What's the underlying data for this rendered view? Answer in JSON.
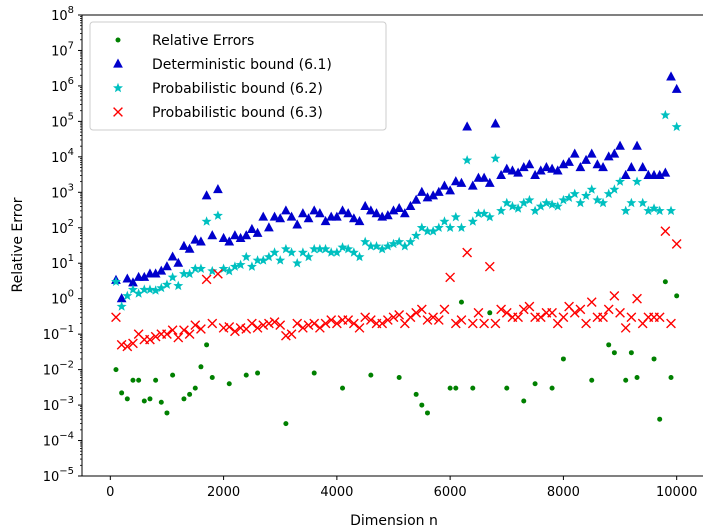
{
  "chart_data": {
    "type": "scatter",
    "title": "",
    "xlabel": "Dimension n",
    "ylabel": "Relative Error",
    "xlim": [
      -500,
      10500
    ],
    "ylim": [
      1e-05,
      100000000.0
    ],
    "yscale": "log",
    "xticks": [
      0,
      2000,
      4000,
      6000,
      8000,
      10000
    ],
    "xtick_labels": [
      "0",
      "2000",
      "4000",
      "6000",
      "8000",
      "10000"
    ],
    "yticks": [
      1e-05,
      0.0001,
      0.001,
      0.01,
      0.1,
      1.0,
      10.0,
      100.0,
      1000.0,
      10000.0,
      100000.0,
      1000000.0,
      10000000.0,
      100000000.0
    ],
    "ytick_labels": [
      {
        "base": "10",
        "exp": "−5"
      },
      {
        "base": "10",
        "exp": "−4"
      },
      {
        "base": "10",
        "exp": "−3"
      },
      {
        "base": "10",
        "exp": "−2"
      },
      {
        "base": "10",
        "exp": "−1"
      },
      {
        "base": "10",
        "exp": "0"
      },
      {
        "base": "10",
        "exp": "1"
      },
      {
        "base": "10",
        "exp": "2"
      },
      {
        "base": "10",
        "exp": "3"
      },
      {
        "base": "10",
        "exp": "4"
      },
      {
        "base": "10",
        "exp": "5"
      },
      {
        "base": "10",
        "exp": "6"
      },
      {
        "base": "10",
        "exp": "7"
      },
      {
        "base": "10",
        "exp": "8"
      }
    ],
    "legend_position": "top-left",
    "grid": false,
    "series": [
      {
        "name": "Relative Errors",
        "marker": "dot",
        "color": "#008000",
        "x": [
          100,
          200,
          300,
          400,
          500,
          600,
          700,
          800,
          900,
          1000,
          1100,
          1300,
          1400,
          1500,
          1600,
          1700,
          1800,
          2100,
          2400,
          2600,
          3100,
          3600,
          4100,
          4600,
          5100,
          5400,
          5500,
          5600,
          6000,
          6100,
          6200,
          6400,
          6700,
          7000,
          7300,
          7500,
          7800,
          8000,
          8500,
          8800,
          8900,
          9100,
          9200,
          9300,
          9600,
          9700,
          9800,
          9900,
          10000
        ],
        "y": [
          0.01,
          0.0022,
          0.0015,
          0.005,
          0.005,
          0.0013,
          0.0015,
          0.005,
          0.0012,
          0.0006,
          0.007,
          0.0015,
          0.002,
          0.003,
          0.012,
          0.05,
          0.006,
          0.004,
          0.007,
          0.008,
          0.0003,
          0.008,
          0.003,
          0.007,
          0.006,
          0.002,
          0.001,
          0.0006,
          0.003,
          0.003,
          0.8,
          0.003,
          0.4,
          0.003,
          0.0013,
          0.004,
          0.003,
          0.02,
          0.005,
          0.05,
          0.03,
          0.005,
          0.03,
          0.006,
          0.02,
          0.0004,
          3,
          0.006,
          1.2
        ]
      },
      {
        "name": "Deterministic bound (6.1)",
        "marker": "triangle",
        "color": "#0000cc",
        "x": [
          100,
          200,
          300,
          400,
          500,
          600,
          700,
          800,
          900,
          1000,
          1100,
          1200,
          1300,
          1400,
          1500,
          1600,
          1700,
          1800,
          1900,
          2000,
          2100,
          2200,
          2300,
          2400,
          2500,
          2600,
          2700,
          2800,
          2900,
          3000,
          3100,
          3200,
          3300,
          3400,
          3500,
          3600,
          3700,
          3800,
          3900,
          4000,
          4100,
          4200,
          4300,
          4400,
          4500,
          4600,
          4700,
          4800,
          4900,
          5000,
          5100,
          5200,
          5300,
          5400,
          5500,
          5600,
          5700,
          5800,
          5900,
          6000,
          6100,
          6200,
          6300,
          6400,
          6500,
          6600,
          6700,
          6800,
          6900,
          7000,
          7100,
          7200,
          7300,
          7400,
          7500,
          7600,
          7700,
          7800,
          7900,
          8000,
          8100,
          8200,
          8300,
          8400,
          8500,
          8600,
          8700,
          8800,
          8900,
          9000,
          9100,
          9200,
          9300,
          9400,
          9500,
          9600,
          9700,
          9800,
          9900,
          10000
        ],
        "y": [
          3.3,
          1.0,
          3.6,
          2.8,
          4,
          4,
          5,
          5,
          6,
          8,
          15,
          10,
          30,
          25,
          45,
          40,
          800,
          60,
          1200,
          50,
          40,
          60,
          50,
          60,
          90,
          70,
          200,
          100,
          200,
          180,
          300,
          200,
          120,
          250,
          180,
          300,
          250,
          150,
          200,
          200,
          300,
          250,
          180,
          150,
          400,
          300,
          250,
          200,
          220,
          300,
          350,
          250,
          400,
          600,
          1000,
          700,
          800,
          1000,
          1500,
          1100,
          2000,
          1800,
          70000,
          1500,
          2500,
          2500,
          1800,
          85000,
          3000,
          4500,
          4000,
          3500,
          5000,
          6000,
          3000,
          4000,
          5000,
          4500,
          4000,
          6000,
          7000,
          12000,
          5000,
          8000,
          12000,
          6000,
          5000,
          10000,
          12000,
          20000,
          3000,
          5000,
          20000,
          5000,
          3000,
          3000,
          3000,
          3500,
          1800000,
          800000
        ]
      },
      {
        "name": "Probabilistic bound (6.2)",
        "marker": "star",
        "color": "#00c0c0",
        "x": [
          100,
          200,
          300,
          400,
          500,
          600,
          700,
          800,
          900,
          1000,
          1100,
          1200,
          1300,
          1400,
          1500,
          1600,
          1700,
          1800,
          1900,
          2000,
          2100,
          2200,
          2300,
          2400,
          2500,
          2600,
          2700,
          2800,
          2900,
          3000,
          3100,
          3200,
          3300,
          3400,
          3500,
          3600,
          3700,
          3800,
          3900,
          4000,
          4100,
          4200,
          4300,
          4400,
          4500,
          4600,
          4700,
          4800,
          4900,
          5000,
          5100,
          5200,
          5300,
          5400,
          5500,
          5600,
          5700,
          5800,
          5900,
          6000,
          6100,
          6200,
          6300,
          6400,
          6500,
          6600,
          6700,
          6800,
          6900,
          7000,
          7100,
          7200,
          7300,
          7400,
          7500,
          7600,
          7700,
          7800,
          7900,
          8000,
          8100,
          8200,
          8300,
          8400,
          8500,
          8600,
          8700,
          8800,
          8900,
          9000,
          9100,
          9200,
          9300,
          9400,
          9500,
          9600,
          9700,
          9800,
          9900,
          10000
        ],
        "y": [
          3,
          0.6,
          1.2,
          1.8,
          1.4,
          1.8,
          1.8,
          1.7,
          2,
          2.5,
          4,
          2.3,
          5,
          5,
          7,
          7,
          150,
          6,
          220,
          7,
          6,
          8,
          9,
          15,
          8,
          12,
          12,
          15,
          20,
          12,
          25,
          20,
          10,
          20,
          15,
          25,
          25,
          25,
          20,
          20,
          28,
          25,
          20,
          15,
          40,
          30,
          30,
          25,
          30,
          35,
          40,
          30,
          40,
          60,
          100,
          80,
          80,
          100,
          150,
          100,
          200,
          100,
          8000,
          150,
          250,
          250,
          200,
          9000,
          300,
          500,
          400,
          350,
          500,
          600,
          300,
          400,
          500,
          450,
          400,
          600,
          700,
          900,
          500,
          800,
          1200,
          600,
          500,
          900,
          1200,
          2000,
          300,
          500,
          2000,
          500,
          300,
          350,
          300,
          150000,
          300,
          70000
        ]
      },
      {
        "name": "Probabilistic bound (6.3)",
        "marker": "x",
        "color": "#ff0000",
        "x": [
          100,
          200,
          300,
          400,
          500,
          600,
          700,
          800,
          900,
          1000,
          1100,
          1200,
          1300,
          1400,
          1500,
          1600,
          1700,
          1800,
          1900,
          2000,
          2100,
          2200,
          2300,
          2400,
          2500,
          2600,
          2700,
          2800,
          2900,
          3000,
          3100,
          3200,
          3300,
          3400,
          3500,
          3600,
          3700,
          3800,
          3900,
          4000,
          4100,
          4200,
          4300,
          4400,
          4500,
          4600,
          4700,
          4800,
          4900,
          5000,
          5100,
          5200,
          5300,
          5400,
          5500,
          5600,
          5700,
          5800,
          5900,
          6000,
          6100,
          6200,
          6300,
          6400,
          6500,
          6600,
          6700,
          6800,
          6900,
          7000,
          7100,
          7200,
          7300,
          7400,
          7500,
          7600,
          7700,
          7800,
          7900,
          8000,
          8100,
          8200,
          8300,
          8400,
          8500,
          8600,
          8700,
          8800,
          8900,
          9000,
          9100,
          9200,
          9300,
          9400,
          9500,
          9600,
          9700,
          9800,
          9900,
          10000
        ],
        "y": [
          0.3,
          0.05,
          0.045,
          0.055,
          0.1,
          0.07,
          0.07,
          0.085,
          0.1,
          0.1,
          0.13,
          0.08,
          0.13,
          0.1,
          0.18,
          0.14,
          3.5,
          0.2,
          5,
          0.15,
          0.16,
          0.12,
          0.15,
          0.14,
          0.2,
          0.15,
          0.18,
          0.2,
          0.22,
          0.18,
          0.09,
          0.1,
          0.2,
          0.15,
          0.18,
          0.2,
          0.15,
          0.2,
          0.25,
          0.2,
          0.25,
          0.25,
          0.2,
          0.15,
          0.3,
          0.25,
          0.2,
          0.2,
          0.25,
          0.3,
          0.35,
          0.2,
          0.3,
          0.4,
          0.5,
          0.25,
          0.3,
          0.25,
          0.5,
          4,
          0.2,
          0.25,
          20,
          0.2,
          0.4,
          0.2,
          8,
          0.2,
          0.5,
          0.4,
          0.3,
          0.3,
          0.5,
          0.6,
          0.3,
          0.3,
          0.4,
          0.4,
          0.2,
          0.3,
          0.6,
          0.4,
          0.5,
          0.2,
          0.8,
          0.3,
          0.3,
          0.5,
          1.2,
          0.4,
          0.15,
          0.3,
          1,
          0.2,
          0.3,
          0.3,
          0.3,
          80,
          0.2,
          35
        ]
      }
    ]
  }
}
